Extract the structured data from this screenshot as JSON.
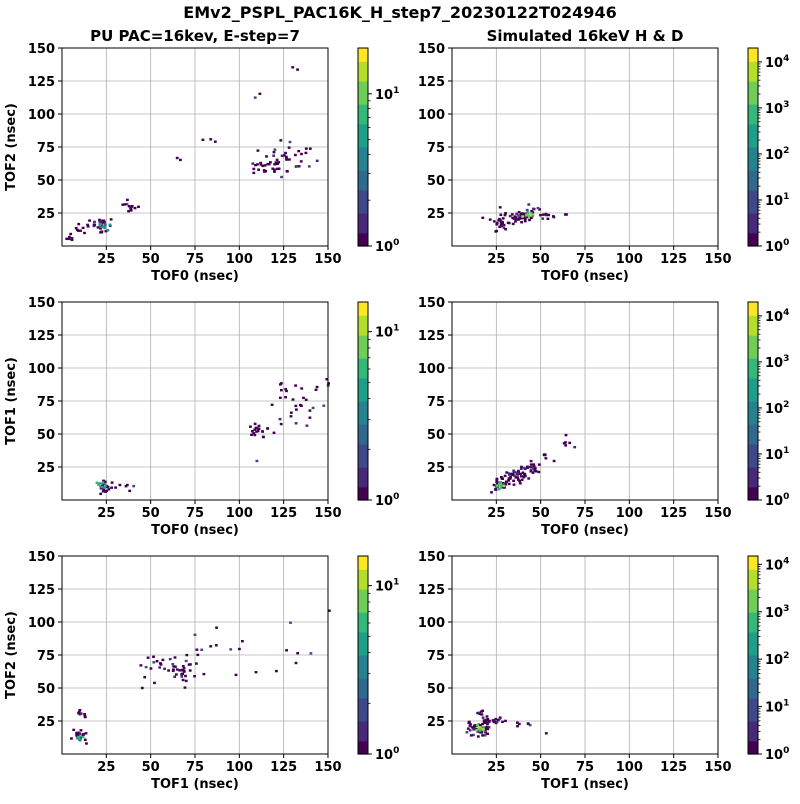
{
  "figure_title": "EMv2_PSPL_PAC16K_H_step7_20230122T024946",
  "colors": {
    "viridis": [
      "#440154",
      "#482878",
      "#3e4989",
      "#31688e",
      "#26828e",
      "#1f9e89",
      "#35b779",
      "#6ece58",
      "#b5de2b",
      "#fde725"
    ],
    "grid": "#b0b0b0",
    "axis": "#000000"
  },
  "chart_data": [
    {
      "type": "heatmap",
      "title": "PU PAC=16kev, E-step=7",
      "xlabel": "TOF0 (nsec)",
      "ylabel": "TOF2 (nsec)",
      "xlim": [
        0,
        150
      ],
      "ylim": [
        0,
        150
      ],
      "xticks": [
        25,
        50,
        75,
        100,
        125,
        150
      ],
      "yticks": [
        25,
        50,
        75,
        100,
        125,
        150
      ],
      "grid": true,
      "colorbar": {
        "scale": "log",
        "range": [
          1,
          20
        ],
        "ticks": [
          {
            "v": 1,
            "exp": "0"
          },
          {
            "v": 10,
            "exp": "1"
          }
        ]
      },
      "clusters": [
        {
          "x": 4,
          "y": 4,
          "sx": 2,
          "sy": 2,
          "n": 6
        },
        {
          "x": 12,
          "y": 12,
          "sx": 3,
          "sy": 3,
          "n": 10
        },
        {
          "x": 22,
          "y": 15,
          "sx": 3,
          "sy": 3,
          "n": 22
        },
        {
          "x": 24,
          "y": 14,
          "sx": 1.5,
          "sy": 1.5,
          "n": 8,
          "lv": 4
        },
        {
          "x": 38,
          "y": 29,
          "sx": 3,
          "sy": 2,
          "n": 12
        },
        {
          "x": 113,
          "y": 58,
          "sx": 5,
          "sy": 3,
          "n": 22
        },
        {
          "x": 128,
          "y": 65,
          "sx": 8,
          "sy": 6,
          "n": 35
        },
        {
          "x": 110,
          "y": 114,
          "sx": 2,
          "sy": 2,
          "n": 2
        },
        {
          "x": 130,
          "y": 135,
          "sx": 4,
          "sy": 4,
          "n": 2
        },
        {
          "x": 80,
          "y": 80,
          "sx": 3,
          "sy": 2,
          "n": 3
        },
        {
          "x": 66,
          "y": 65,
          "sx": 2,
          "sy": 2,
          "n": 2
        }
      ]
    },
    {
      "type": "heatmap",
      "title": "Simulated 16keV H & D",
      "xlabel": "TOF0 (nsec)",
      "ylabel": "",
      "xlim": [
        0,
        150
      ],
      "ylim": [
        0,
        150
      ],
      "xticks": [
        25,
        50,
        75,
        100,
        125,
        150
      ],
      "yticks": [
        25,
        50,
        75,
        100,
        125,
        150
      ],
      "grid": true,
      "colorbar": {
        "scale": "log",
        "range": [
          1,
          20000
        ],
        "ticks": [
          {
            "v": 1,
            "exp": "0"
          },
          {
            "v": 10,
            "exp": "1"
          },
          {
            "v": 100,
            "exp": "2"
          },
          {
            "v": 1000,
            "exp": "3"
          },
          {
            "v": 10000,
            "exp": "4"
          }
        ]
      },
      "clusters": [
        {
          "x": 27,
          "y": 17,
          "sx": 3,
          "sy": 3,
          "n": 30
        },
        {
          "x": 38,
          "y": 22,
          "sx": 3,
          "sy": 2,
          "n": 40
        },
        {
          "x": 42,
          "y": 22,
          "sx": 1.5,
          "sy": 1.5,
          "n": 10,
          "lv": 7
        },
        {
          "x": 55,
          "y": 22,
          "sx": 6,
          "sy": 1,
          "n": 12
        },
        {
          "x": 46,
          "y": 28,
          "sx": 2,
          "sy": 2,
          "n": 6
        }
      ]
    },
    {
      "type": "heatmap",
      "title": "",
      "xlabel": "TOF0 (nsec)",
      "ylabel": "TOF1 (nsec)",
      "xlim": [
        0,
        150
      ],
      "ylim": [
        0,
        150
      ],
      "xticks": [
        25,
        50,
        75,
        100,
        125,
        150
      ],
      "yticks": [
        25,
        50,
        75,
        100,
        125,
        150
      ],
      "grid": true,
      "colorbar": {
        "scale": "log",
        "range": [
          1,
          15
        ],
        "ticks": [
          {
            "v": 1,
            "exp": "0"
          },
          {
            "v": 10,
            "exp": "1"
          }
        ]
      },
      "clusters": [
        {
          "x": 22,
          "y": 9,
          "sx": 2.5,
          "sy": 2,
          "n": 22
        },
        {
          "x": 22,
          "y": 10,
          "sx": 1.2,
          "sy": 1.2,
          "n": 8,
          "lv": 5
        },
        {
          "x": 33,
          "y": 10,
          "sx": 3,
          "sy": 2,
          "n": 6
        },
        {
          "x": 110,
          "y": 51,
          "sx": 5,
          "sy": 3,
          "n": 20
        },
        {
          "x": 130,
          "y": 72,
          "sx": 8,
          "sy": 10,
          "n": 30
        },
        {
          "x": 147,
          "y": 88,
          "sx": 2,
          "sy": 4,
          "n": 3
        },
        {
          "x": 108,
          "y": 28,
          "sx": 1,
          "sy": 1,
          "n": 1
        }
      ]
    },
    {
      "type": "heatmap",
      "title": "",
      "xlabel": "TOF0 (nsec)",
      "ylabel": "",
      "xlim": [
        0,
        150
      ],
      "ylim": [
        0,
        150
      ],
      "xticks": [
        25,
        50,
        75,
        100,
        125,
        150
      ],
      "yticks": [
        25,
        50,
        75,
        100,
        125,
        150
      ],
      "grid": true,
      "colorbar": {
        "scale": "log",
        "range": [
          1,
          20000
        ],
        "ticks": [
          {
            "v": 1,
            "exp": "0"
          },
          {
            "v": 10,
            "exp": "1"
          },
          {
            "v": 100,
            "exp": "2"
          },
          {
            "v": 1000,
            "exp": "3"
          },
          {
            "v": 10000,
            "exp": "4"
          }
        ]
      },
      "clusters": [
        {
          "x": 26,
          "y": 10,
          "sx": 2.5,
          "sy": 2,
          "n": 30
        },
        {
          "x": 27,
          "y": 10,
          "sx": 1.2,
          "sy": 1.2,
          "n": 8,
          "lv": 7
        },
        {
          "x": 36,
          "y": 17,
          "sx": 4,
          "sy": 3,
          "n": 40
        },
        {
          "x": 44,
          "y": 23,
          "sx": 3,
          "sy": 2,
          "n": 20
        },
        {
          "x": 52,
          "y": 32,
          "sx": 2,
          "sy": 2,
          "n": 6
        },
        {
          "x": 63,
          "y": 42,
          "sx": 2,
          "sy": 2,
          "n": 6
        }
      ]
    },
    {
      "type": "heatmap",
      "title": "",
      "xlabel": "TOF1 (nsec)",
      "ylabel": "TOF2 (nsec)",
      "xlim": [
        0,
        150
      ],
      "ylim": [
        0,
        150
      ],
      "xticks": [
        25,
        50,
        75,
        100,
        125,
        150
      ],
      "yticks": [
        25,
        50,
        75,
        100,
        125,
        150
      ],
      "grid": true,
      "colorbar": {
        "scale": "log",
        "range": [
          1,
          15
        ],
        "ticks": [
          {
            "v": 1,
            "exp": "0"
          },
          {
            "v": 10,
            "exp": "1"
          }
        ]
      },
      "clusters": [
        {
          "x": 9,
          "y": 13,
          "sx": 2,
          "sy": 3,
          "n": 22
        },
        {
          "x": 9,
          "y": 12,
          "sx": 1,
          "sy": 1,
          "n": 6,
          "lv": 5
        },
        {
          "x": 9,
          "y": 29,
          "sx": 1.5,
          "sy": 2,
          "n": 8
        },
        {
          "x": 60,
          "y": 64,
          "sx": 9,
          "sy": 7,
          "n": 45
        },
        {
          "x": 85,
          "y": 80,
          "sx": 12,
          "sy": 10,
          "n": 14
        },
        {
          "x": 125,
          "y": 80,
          "sx": 14,
          "sy": 15,
          "n": 8
        }
      ]
    },
    {
      "type": "heatmap",
      "title": "",
      "xlabel": "TOF1 (nsec)",
      "ylabel": "",
      "xlim": [
        0,
        150
      ],
      "ylim": [
        0,
        150
      ],
      "xticks": [
        25,
        50,
        75,
        100,
        125,
        150
      ],
      "yticks": [
        25,
        50,
        75,
        100,
        125,
        150
      ],
      "grid": true,
      "colorbar": {
        "scale": "log",
        "range": [
          1,
          15000
        ],
        "ticks": [
          {
            "v": 1,
            "exp": "0"
          },
          {
            "v": 10,
            "exp": "1"
          },
          {
            "v": 100,
            "exp": "2"
          },
          {
            "v": 1000,
            "exp": "3"
          },
          {
            "v": 10000,
            "exp": "4"
          }
        ]
      },
      "clusters": [
        {
          "x": 15,
          "y": 18,
          "sx": 4,
          "sy": 2.5,
          "n": 40
        },
        {
          "x": 15,
          "y": 18,
          "sx": 1.5,
          "sy": 1.2,
          "n": 10,
          "lv": 7
        },
        {
          "x": 20,
          "y": 24,
          "sx": 4,
          "sy": 1.5,
          "n": 25
        },
        {
          "x": 15,
          "y": 30,
          "sx": 1.5,
          "sy": 1.5,
          "n": 6
        },
        {
          "x": 38,
          "y": 22,
          "sx": 4,
          "sy": 1,
          "n": 6
        },
        {
          "x": 52,
          "y": 15,
          "sx": 1,
          "sy": 1,
          "n": 1
        }
      ]
    }
  ]
}
